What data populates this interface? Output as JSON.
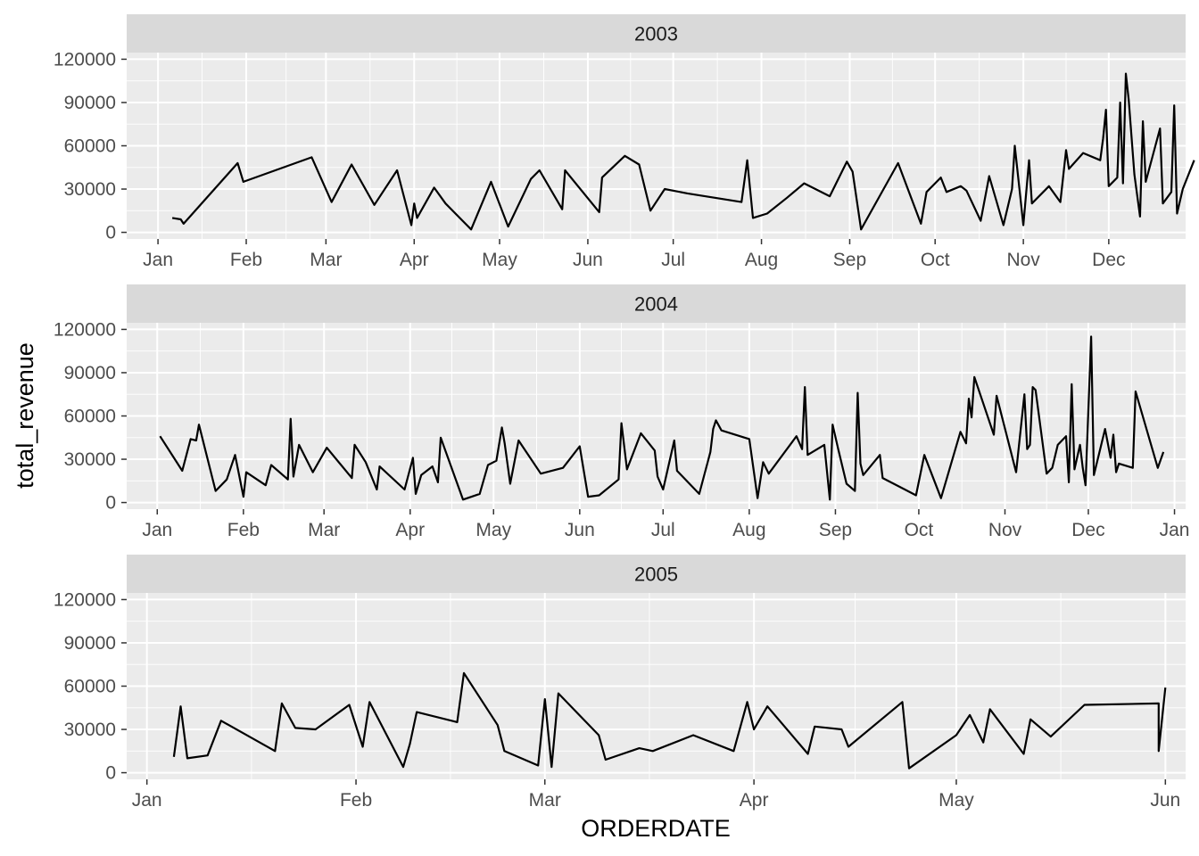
{
  "chart_data": {
    "type": "line",
    "xlabel": "ORDERDATE",
    "ylabel": "total_revenue",
    "ylim": [
      0,
      120000
    ],
    "y_ticks": [
      0,
      30000,
      60000,
      90000,
      120000
    ],
    "y_tick_labels": [
      "0",
      "30000",
      "60000",
      "90000",
      "120000"
    ],
    "grid": true,
    "legend": "none",
    "colors": {
      "panel": "#ebebeb",
      "strip": "#d9d9d9",
      "grid": "#ffffff",
      "line": "#000000"
    },
    "facets": [
      {
        "label": "2003",
        "xlim": [
          "2002-12-21",
          "2003-12-28"
        ],
        "x_ticks": [
          "2003-01-01",
          "2003-02-01",
          "2003-03-01",
          "2003-04-01",
          "2003-05-01",
          "2003-06-01",
          "2003-07-01",
          "2003-08-01",
          "2003-09-01",
          "2003-10-01",
          "2003-11-01",
          "2003-12-01"
        ],
        "x_tick_labels": [
          "Jan",
          "Feb",
          "Mar",
          "Apr",
          "May",
          "Jun",
          "Jul",
          "Aug",
          "Sep",
          "Oct",
          "Nov",
          "Dec"
        ],
        "points": [
          [
            "2003-01-06",
            10000
          ],
          [
            "2003-01-09",
            9000
          ],
          [
            "2003-01-10",
            6000
          ],
          [
            "2003-01-29",
            48000
          ],
          [
            "2003-01-31",
            35000
          ],
          [
            "2003-02-24",
            52000
          ],
          [
            "2003-03-03",
            21000
          ],
          [
            "2003-03-10",
            47000
          ],
          [
            "2003-03-18",
            19000
          ],
          [
            "2003-03-26",
            43000
          ],
          [
            "2003-03-31",
            5000
          ],
          [
            "2003-04-01",
            20000
          ],
          [
            "2003-04-02",
            10000
          ],
          [
            "2003-04-08",
            31000
          ],
          [
            "2003-04-12",
            20000
          ],
          [
            "2003-04-21",
            2000
          ],
          [
            "2003-04-28",
            35000
          ],
          [
            "2003-05-04",
            4000
          ],
          [
            "2003-05-12",
            37000
          ],
          [
            "2003-05-15",
            43000
          ],
          [
            "2003-05-23",
            16000
          ],
          [
            "2003-05-24",
            43000
          ],
          [
            "2003-06-05",
            14000
          ],
          [
            "2003-06-06",
            38000
          ],
          [
            "2003-06-14",
            53000
          ],
          [
            "2003-06-19",
            47000
          ],
          [
            "2003-06-23",
            15000
          ],
          [
            "2003-06-28",
            30000
          ],
          [
            "2003-07-06",
            27000
          ],
          [
            "2003-07-25",
            21000
          ],
          [
            "2003-07-27",
            50000
          ],
          [
            "2003-07-29",
            10000
          ],
          [
            "2003-08-03",
            13000
          ],
          [
            "2003-08-10",
            24000
          ],
          [
            "2003-08-16",
            34000
          ],
          [
            "2003-08-25",
            25000
          ],
          [
            "2003-08-31",
            49000
          ],
          [
            "2003-09-02",
            42000
          ],
          [
            "2003-09-05",
            2000
          ],
          [
            "2003-09-18",
            48000
          ],
          [
            "2003-09-26",
            6000
          ],
          [
            "2003-09-28",
            28000
          ],
          [
            "2003-10-03",
            38000
          ],
          [
            "2003-10-05",
            28000
          ],
          [
            "2003-10-10",
            32000
          ],
          [
            "2003-10-12",
            29000
          ],
          [
            "2003-10-17",
            8000
          ],
          [
            "2003-10-20",
            39000
          ],
          [
            "2003-10-25",
            5000
          ],
          [
            "2003-10-28",
            30000
          ],
          [
            "2003-10-29",
            60000
          ],
          [
            "2003-11-01",
            5000
          ],
          [
            "2003-11-03",
            50000
          ],
          [
            "2003-11-04",
            20000
          ],
          [
            "2003-11-10",
            32000
          ],
          [
            "2003-11-14",
            21000
          ],
          [
            "2003-11-16",
            57000
          ],
          [
            "2003-11-17",
            44000
          ],
          [
            "2003-11-22",
            55000
          ],
          [
            "2003-11-28",
            50000
          ],
          [
            "2003-11-29",
            65000
          ],
          [
            "2003-11-30",
            85000
          ],
          [
            "2003-12-01",
            32000
          ],
          [
            "2003-12-04",
            38000
          ],
          [
            "2003-12-05",
            90000
          ],
          [
            "2003-12-06",
            34000
          ],
          [
            "2003-12-07",
            110000
          ],
          [
            "2003-12-08",
            92000
          ],
          [
            "2003-12-10",
            40000
          ],
          [
            "2003-12-12",
            11000
          ],
          [
            "2003-12-13",
            77000
          ],
          [
            "2003-12-14",
            35000
          ],
          [
            "2003-12-19",
            72000
          ],
          [
            "2003-12-20",
            20000
          ],
          [
            "2003-12-23",
            28000
          ],
          [
            "2003-12-24",
            88000
          ],
          [
            "2003-12-25",
            13000
          ],
          [
            "2003-12-27",
            30000
          ],
          [
            "2003-12-31",
            50000
          ]
        ]
      },
      {
        "label": "2004",
        "xlim": [
          "2003-12-21",
          "2005-01-05"
        ],
        "x_ticks": [
          "2004-01-01",
          "2004-02-01",
          "2004-03-01",
          "2004-04-01",
          "2004-05-01",
          "2004-06-01",
          "2004-07-01",
          "2004-08-01",
          "2004-09-01",
          "2004-10-01",
          "2004-11-01",
          "2004-12-01",
          "2005-01-01"
        ],
        "x_tick_labels": [
          "Jan",
          "Feb",
          "Mar",
          "Apr",
          "May",
          "Jun",
          "Jul",
          "Aug",
          "Sep",
          "Oct",
          "Nov",
          "Dec",
          "Jan"
        ],
        "points": [
          [
            "2004-01-02",
            46000
          ],
          [
            "2004-01-10",
            22000
          ],
          [
            "2004-01-13",
            44000
          ],
          [
            "2004-01-15",
            43000
          ],
          [
            "2004-01-16",
            54000
          ],
          [
            "2004-01-22",
            8000
          ],
          [
            "2004-01-26",
            16000
          ],
          [
            "2004-01-29",
            33000
          ],
          [
            "2004-02-01",
            4000
          ],
          [
            "2004-02-02",
            21000
          ],
          [
            "2004-02-09",
            12000
          ],
          [
            "2004-02-11",
            26000
          ],
          [
            "2004-02-17",
            16000
          ],
          [
            "2004-02-18",
            58000
          ],
          [
            "2004-02-19",
            18000
          ],
          [
            "2004-02-21",
            40000
          ],
          [
            "2004-02-26",
            21000
          ],
          [
            "2004-03-02",
            38000
          ],
          [
            "2004-03-11",
            17000
          ],
          [
            "2004-03-12",
            40000
          ],
          [
            "2004-03-16",
            28000
          ],
          [
            "2004-03-20",
            9000
          ],
          [
            "2004-03-21",
            25000
          ],
          [
            "2004-03-30",
            9000
          ],
          [
            "2004-04-02",
            31000
          ],
          [
            "2004-04-03",
            6000
          ],
          [
            "2004-04-05",
            19000
          ],
          [
            "2004-04-09",
            25000
          ],
          [
            "2004-04-11",
            14000
          ],
          [
            "2004-04-12",
            45000
          ],
          [
            "2004-04-20",
            2000
          ],
          [
            "2004-04-26",
            6000
          ],
          [
            "2004-04-29",
            26000
          ],
          [
            "2004-05-02",
            29000
          ],
          [
            "2004-05-04",
            52000
          ],
          [
            "2004-05-05",
            41000
          ],
          [
            "2004-05-07",
            13000
          ],
          [
            "2004-05-10",
            43000
          ],
          [
            "2004-05-18",
            20000
          ],
          [
            "2004-05-26",
            24000
          ],
          [
            "2004-06-01",
            39000
          ],
          [
            "2004-06-04",
            4000
          ],
          [
            "2004-06-08",
            5000
          ],
          [
            "2004-06-15",
            16000
          ],
          [
            "2004-06-16",
            55000
          ],
          [
            "2004-06-18",
            23000
          ],
          [
            "2004-06-23",
            48000
          ],
          [
            "2004-06-28",
            36000
          ],
          [
            "2004-06-29",
            18000
          ],
          [
            "2004-07-01",
            9000
          ],
          [
            "2004-07-05",
            43000
          ],
          [
            "2004-07-06",
            22000
          ],
          [
            "2004-07-14",
            6000
          ],
          [
            "2004-07-18",
            35000
          ],
          [
            "2004-07-19",
            51000
          ],
          [
            "2004-07-20",
            57000
          ],
          [
            "2004-07-22",
            50000
          ],
          [
            "2004-08-01",
            44000
          ],
          [
            "2004-08-04",
            3000
          ],
          [
            "2004-08-06",
            28000
          ],
          [
            "2004-08-08",
            20000
          ],
          [
            "2004-08-18",
            46000
          ],
          [
            "2004-08-20",
            37000
          ],
          [
            "2004-08-21",
            80000
          ],
          [
            "2004-08-22",
            33000
          ],
          [
            "2004-08-28",
            40000
          ],
          [
            "2004-08-30",
            2000
          ],
          [
            "2004-08-31",
            54000
          ],
          [
            "2004-09-02",
            37000
          ],
          [
            "2004-09-05",
            13000
          ],
          [
            "2004-09-08",
            8000
          ],
          [
            "2004-09-09",
            76000
          ],
          [
            "2004-09-10",
            27000
          ],
          [
            "2004-09-11",
            19000
          ],
          [
            "2004-09-17",
            33000
          ],
          [
            "2004-09-18",
            17000
          ],
          [
            "2004-09-30",
            5000
          ],
          [
            "2004-10-03",
            33000
          ],
          [
            "2004-10-09",
            3000
          ],
          [
            "2004-10-16",
            49000
          ],
          [
            "2004-10-18",
            41000
          ],
          [
            "2004-10-19",
            72000
          ],
          [
            "2004-10-20",
            59000
          ],
          [
            "2004-10-21",
            87000
          ],
          [
            "2004-10-28",
            47000
          ],
          [
            "2004-10-29",
            74000
          ],
          [
            "2004-11-05",
            21000
          ],
          [
            "2004-11-08",
            75000
          ],
          [
            "2004-11-09",
            37000
          ],
          [
            "2004-11-10",
            40000
          ],
          [
            "2004-11-11",
            80000
          ],
          [
            "2004-11-12",
            78000
          ],
          [
            "2004-11-16",
            20000
          ],
          [
            "2004-11-18",
            24000
          ],
          [
            "2004-11-20",
            40000
          ],
          [
            "2004-11-23",
            46000
          ],
          [
            "2004-11-24",
            14000
          ],
          [
            "2004-11-25",
            82000
          ],
          [
            "2004-11-26",
            23000
          ],
          [
            "2004-11-28",
            40000
          ],
          [
            "2004-11-29",
            24000
          ],
          [
            "2004-11-30",
            12000
          ],
          [
            "2004-12-02",
            115000
          ],
          [
            "2004-12-03",
            19000
          ],
          [
            "2004-12-07",
            51000
          ],
          [
            "2004-12-09",
            31000
          ],
          [
            "2004-12-10",
            47000
          ],
          [
            "2004-12-11",
            21000
          ],
          [
            "2004-12-12",
            27000
          ],
          [
            "2004-12-17",
            24000
          ],
          [
            "2004-12-18",
            77000
          ],
          [
            "2004-12-26",
            24000
          ],
          [
            "2004-12-28",
            35000
          ]
        ]
      },
      {
        "label": "2005",
        "xlim": [
          "2004-12-29",
          "2005-06-04"
        ],
        "x_ticks": [
          "2005-01-01",
          "2005-02-01",
          "2005-03-01",
          "2005-04-01",
          "2005-05-01",
          "2005-06-01"
        ],
        "x_tick_labels": [
          "Jan",
          "Feb",
          "Mar",
          "Apr",
          "May",
          "Jun"
        ],
        "points": [
          [
            "2005-01-05",
            11000
          ],
          [
            "2005-01-06",
            46000
          ],
          [
            "2005-01-07",
            10000
          ],
          [
            "2005-01-10",
            12000
          ],
          [
            "2005-01-12",
            36000
          ],
          [
            "2005-01-20",
            15000
          ],
          [
            "2005-01-21",
            48000
          ],
          [
            "2005-01-23",
            31000
          ],
          [
            "2005-01-26",
            30000
          ],
          [
            "2005-01-31",
            47000
          ],
          [
            "2005-02-02",
            18000
          ],
          [
            "2005-02-03",
            49000
          ],
          [
            "2005-02-08",
            4000
          ],
          [
            "2005-02-09",
            20000
          ],
          [
            "2005-02-10",
            42000
          ],
          [
            "2005-02-16",
            35000
          ],
          [
            "2005-02-17",
            69000
          ],
          [
            "2005-02-22",
            33000
          ],
          [
            "2005-02-23",
            15000
          ],
          [
            "2005-02-28",
            5000
          ],
          [
            "2005-03-01",
            51000
          ],
          [
            "2005-03-02",
            4000
          ],
          [
            "2005-03-03",
            55000
          ],
          [
            "2005-03-09",
            26000
          ],
          [
            "2005-03-10",
            9000
          ],
          [
            "2005-03-15",
            17000
          ],
          [
            "2005-03-17",
            15000
          ],
          [
            "2005-03-23",
            26000
          ],
          [
            "2005-03-29",
            15000
          ],
          [
            "2005-03-31",
            49000
          ],
          [
            "2005-04-01",
            30000
          ],
          [
            "2005-04-03",
            46000
          ],
          [
            "2005-04-09",
            13000
          ],
          [
            "2005-04-10",
            32000
          ],
          [
            "2005-04-14",
            30000
          ],
          [
            "2005-04-15",
            18000
          ],
          [
            "2005-04-23",
            49000
          ],
          [
            "2005-04-24",
            3000
          ],
          [
            "2005-05-01",
            26000
          ],
          [
            "2005-05-03",
            40000
          ],
          [
            "2005-05-05",
            21000
          ],
          [
            "2005-05-06",
            44000
          ],
          [
            "2005-05-11",
            13000
          ],
          [
            "2005-05-12",
            37000
          ],
          [
            "2005-05-15",
            25000
          ],
          [
            "2005-05-20",
            47000
          ],
          [
            "2005-05-31",
            48000
          ],
          [
            "2005-05-31",
            15000
          ],
          [
            "2005-06-01",
            59000
          ]
        ]
      }
    ]
  }
}
